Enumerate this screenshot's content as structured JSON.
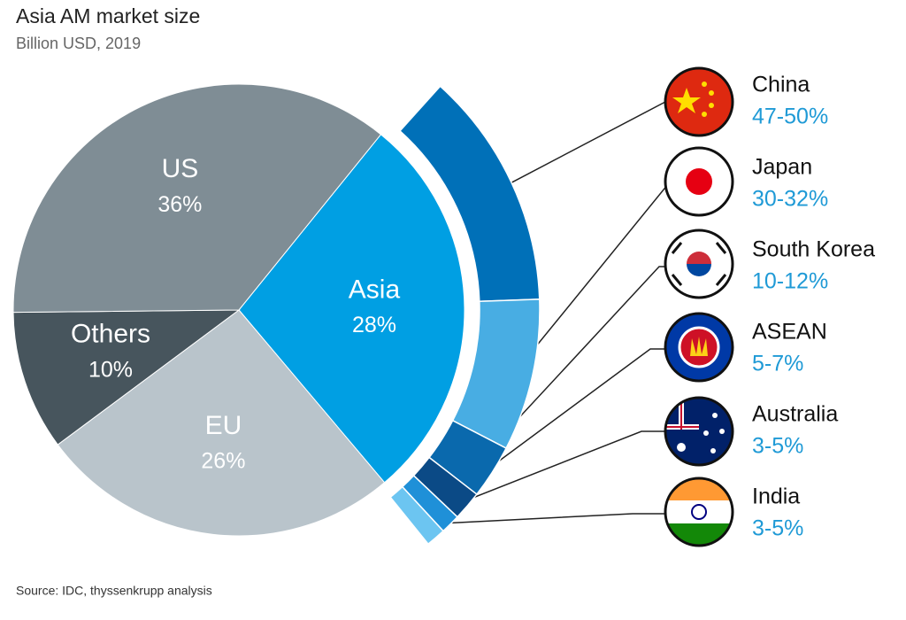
{
  "chart_data": {
    "type": "pie",
    "title": "Asia AM market size",
    "subtitle": "Billion USD, 2019",
    "categories": [
      "Asia",
      "EU",
      "Others",
      "US"
    ],
    "values": [
      28,
      26,
      10,
      36
    ],
    "value_labels": [
      "28%",
      "26%",
      "10%",
      "36%"
    ],
    "colors": [
      "#009fe3",
      "#b9c4cb",
      "#47555d",
      "#7f8d95"
    ],
    "breakdown": {
      "categories": [
        "China",
        "Japan",
        "South Korea",
        "ASEAN",
        "Australia",
        "India"
      ],
      "low": [
        47,
        30,
        10,
        5,
        3,
        3
      ],
      "high": [
        50,
        32,
        12,
        7,
        5,
        5
      ],
      "value_labels": [
        "47-50%",
        "30-32%",
        "10-12%",
        "5-7%",
        "3-5%",
        "3-5%"
      ],
      "colors": [
        "#0070b8",
        "#48ade3",
        "#0a69ad",
        "#0b4a86",
        "#1f90d8",
        "#6cc5f1"
      ]
    },
    "source": "Source: IDC, thyssenkrupp analysis"
  }
}
